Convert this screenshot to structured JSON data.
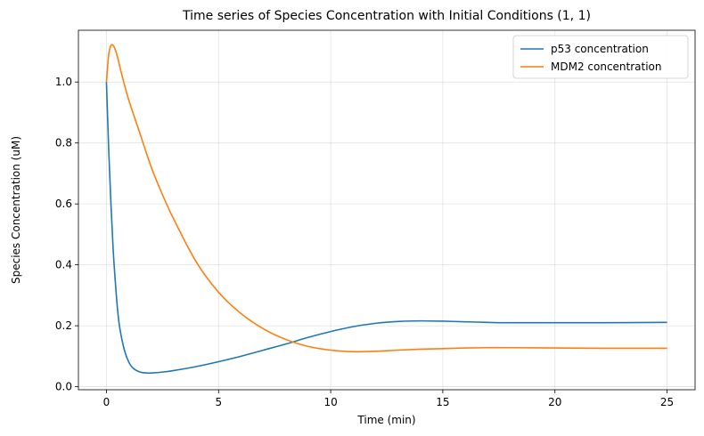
{
  "chart_data": {
    "type": "line",
    "title": "Time series of Species Concentration with Initial Conditions (1, 1)",
    "xlabel": "Time (min)",
    "ylabel": "Species Concentration (uM)",
    "xlim": [
      -1.25,
      26.25
    ],
    "ylim": [
      -0.01,
      1.17
    ],
    "xticks": [
      0,
      5,
      10,
      15,
      20,
      25
    ],
    "xtick_labels": [
      "0",
      "5",
      "10",
      "15",
      "20",
      "25"
    ],
    "yticks": [
      0.0,
      0.2,
      0.4,
      0.6,
      0.8,
      1.0
    ],
    "ytick_labels": [
      "0.0",
      "0.2",
      "0.4",
      "0.6",
      "0.8",
      "1.0"
    ],
    "grid": true,
    "legend_position": "top-right",
    "series": [
      {
        "name": "p53 concentration",
        "color": "#1f77b4",
        "x": [
          0,
          0.1,
          0.2,
          0.3,
          0.4,
          0.5,
          0.6,
          0.8,
          1.0,
          1.2,
          1.5,
          1.8,
          2.0,
          2.5,
          3.0,
          4.0,
          5.0,
          6.0,
          7.0,
          8.0,
          9.0,
          10.0,
          11.0,
          12.0,
          13.0,
          14.0,
          15.0,
          16.0,
          17.0,
          18.0,
          20.0,
          22.0,
          25.0
        ],
        "y": [
          1.0,
          0.78,
          0.6,
          0.45,
          0.34,
          0.25,
          0.19,
          0.12,
          0.08,
          0.06,
          0.048,
          0.045,
          0.045,
          0.048,
          0.053,
          0.066,
          0.082,
          0.1,
          0.12,
          0.14,
          0.162,
          0.181,
          0.197,
          0.208,
          0.214,
          0.216,
          0.215,
          0.213,
          0.211,
          0.21,
          0.21,
          0.21,
          0.211
        ]
      },
      {
        "name": "MDM2 concentration",
        "color": "#ff7f0e",
        "x": [
          0,
          0.1,
          0.2,
          0.3,
          0.4,
          0.5,
          0.7,
          1.0,
          1.5,
          2.0,
          2.5,
          3.0,
          4.0,
          5.0,
          6.0,
          7.0,
          8.0,
          9.0,
          10.0,
          11.0,
          12.0,
          13.0,
          14.0,
          15.0,
          16.0,
          17.0,
          18.0,
          20.0,
          22.0,
          25.0
        ],
        "y": [
          1.0,
          1.09,
          1.12,
          1.12,
          1.105,
          1.08,
          1.02,
          0.94,
          0.83,
          0.72,
          0.63,
          0.55,
          0.41,
          0.31,
          0.24,
          0.19,
          0.155,
          0.132,
          0.12,
          0.115,
          0.116,
          0.12,
          0.123,
          0.125,
          0.127,
          0.128,
          0.128,
          0.127,
          0.126,
          0.126
        ]
      }
    ]
  }
}
